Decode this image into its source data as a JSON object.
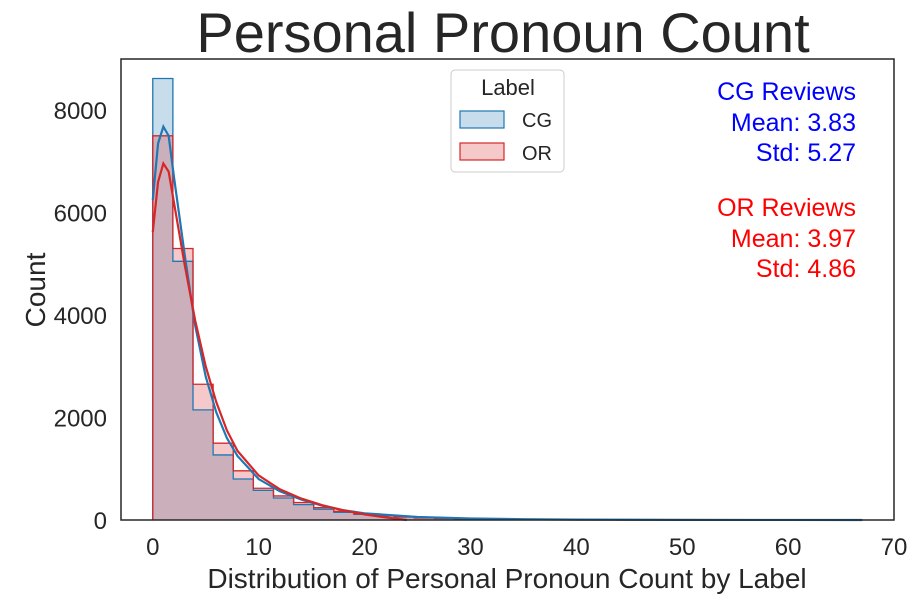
{
  "chart_data": {
    "type": "histogram",
    "title": "Personal Pronoun Count",
    "xlabel": "Distribution of Personal Pronoun Count by Label",
    "ylabel": "Count",
    "xlim": [
      -3,
      70
    ],
    "ylim": [
      0,
      9000
    ],
    "x_ticks": [
      0,
      10,
      20,
      30,
      40,
      50,
      60,
      70
    ],
    "y_ticks": [
      0,
      2000,
      4000,
      6000,
      8000
    ],
    "grid": false,
    "bin_edges": [
      0,
      1.9,
      3.8,
      5.7,
      7.6,
      9.5,
      11.4,
      13.3,
      15.2,
      17.1,
      19.0,
      20.9,
      22.8,
      24.7,
      26.6,
      28.5,
      30.4,
      32.3,
      34.2,
      36.1,
      38.0,
      39.9,
      41.8,
      43.7,
      45.6,
      47.5,
      49.4,
      51.3,
      53.2,
      55.1,
      57.0,
      58.9,
      60.8,
      62.7,
      64.6,
      66.5
    ],
    "legend": {
      "title": "Label",
      "placement": "top-center",
      "entries": [
        "CG",
        "OR"
      ]
    },
    "series": [
      {
        "name": "CG",
        "color": "#1f77b4",
        "counts": [
          8620,
          5050,
          2150,
          1270,
          800,
          580,
          430,
          300,
          210,
          150,
          110,
          80,
          60,
          45,
          35,
          25,
          20,
          15,
          10,
          8,
          6,
          5,
          4,
          3,
          3,
          2,
          2,
          2,
          1,
          1,
          1,
          1,
          1,
          1,
          1
        ],
        "kde": [
          [
            0,
            6250
          ],
          [
            0.5,
            7350
          ],
          [
            1,
            7680
          ],
          [
            1.5,
            7500
          ],
          [
            2,
            6700
          ],
          [
            3,
            5200
          ],
          [
            4,
            3800
          ],
          [
            5,
            2800
          ],
          [
            6,
            2100
          ],
          [
            7,
            1600
          ],
          [
            8,
            1250
          ],
          [
            10,
            800
          ],
          [
            12,
            560
          ],
          [
            14,
            400
          ],
          [
            16,
            280
          ],
          [
            18,
            190
          ],
          [
            20,
            130
          ],
          [
            25,
            60
          ],
          [
            30,
            30
          ],
          [
            35,
            15
          ],
          [
            40,
            8
          ],
          [
            50,
            3
          ],
          [
            60,
            1
          ],
          [
            67,
            0
          ]
        ]
      },
      {
        "name": "OR",
        "color": "#d62728",
        "counts": [
          7500,
          5300,
          2650,
          1500,
          960,
          620,
          470,
          340,
          240,
          170,
          120,
          85,
          60,
          40,
          30,
          20,
          15,
          10,
          6,
          4,
          3,
          2,
          2,
          1,
          1,
          1,
          1,
          0,
          0,
          0,
          0,
          0,
          0,
          0,
          0
        ],
        "kde": [
          [
            0,
            5620
          ],
          [
            0.5,
            6600
          ],
          [
            1,
            6960
          ],
          [
            1.5,
            6800
          ],
          [
            2,
            6200
          ],
          [
            3,
            5000
          ],
          [
            4,
            3900
          ],
          [
            5,
            3000
          ],
          [
            6,
            2300
          ],
          [
            7,
            1750
          ],
          [
            8,
            1350
          ],
          [
            10,
            870
          ],
          [
            12,
            600
          ],
          [
            14,
            420
          ],
          [
            16,
            290
          ],
          [
            18,
            190
          ],
          [
            20,
            110
          ],
          [
            22,
            50
          ],
          [
            24,
            0
          ]
        ]
      }
    ],
    "annotations": [
      {
        "lines": [
          "CG Reviews",
          "Mean: 3.83",
          "Std: 5.27"
        ],
        "color": "#0000ff"
      },
      {
        "lines": [
          "OR Reviews",
          "Mean: 3.97",
          "Std: 4.86"
        ],
        "color": "#ff0000"
      }
    ]
  }
}
